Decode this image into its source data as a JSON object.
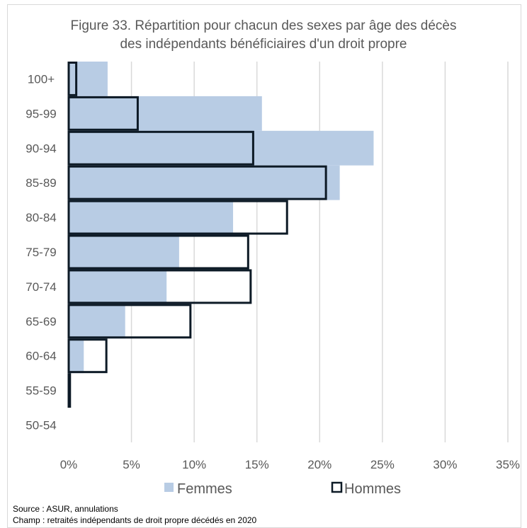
{
  "chart_data": {
    "type": "bar",
    "orientation": "horizontal",
    "title_lines": [
      "Figure 33. Répartition pour chacun des sexes par âge des décès",
      "des indépendants bénéficiaires d'un droit propre"
    ],
    "categories": [
      "50-54",
      "55-59",
      "60-64",
      "65-69",
      "70-74",
      "75-79",
      "80-84",
      "85-89",
      "90-94",
      "95-99",
      "100+"
    ],
    "series": [
      {
        "name": "Femmes",
        "values": [
          0,
          0.05,
          1.2,
          4.5,
          7.8,
          8.8,
          13.1,
          21.6,
          24.3,
          15.4,
          3.1
        ],
        "color": "#b8cce4",
        "style": "filled"
      },
      {
        "name": "Hommes",
        "values": [
          0,
          0.1,
          3.0,
          9.7,
          14.5,
          14.3,
          17.4,
          20.5,
          14.7,
          5.5,
          0.6
        ],
        "color": "#0d1a26",
        "style": "outline"
      }
    ],
    "x_ticks": [
      "0%",
      "5%",
      "10%",
      "15%",
      "20%",
      "25%",
      "30%",
      "35%"
    ],
    "xlim": [
      0,
      35
    ],
    "grid": "vertical",
    "legend_position": "bottom",
    "notes": [
      "Source : ASUR, annulations",
      "Champ : retraités indépendants de droit propre décédés en 2020"
    ]
  }
}
